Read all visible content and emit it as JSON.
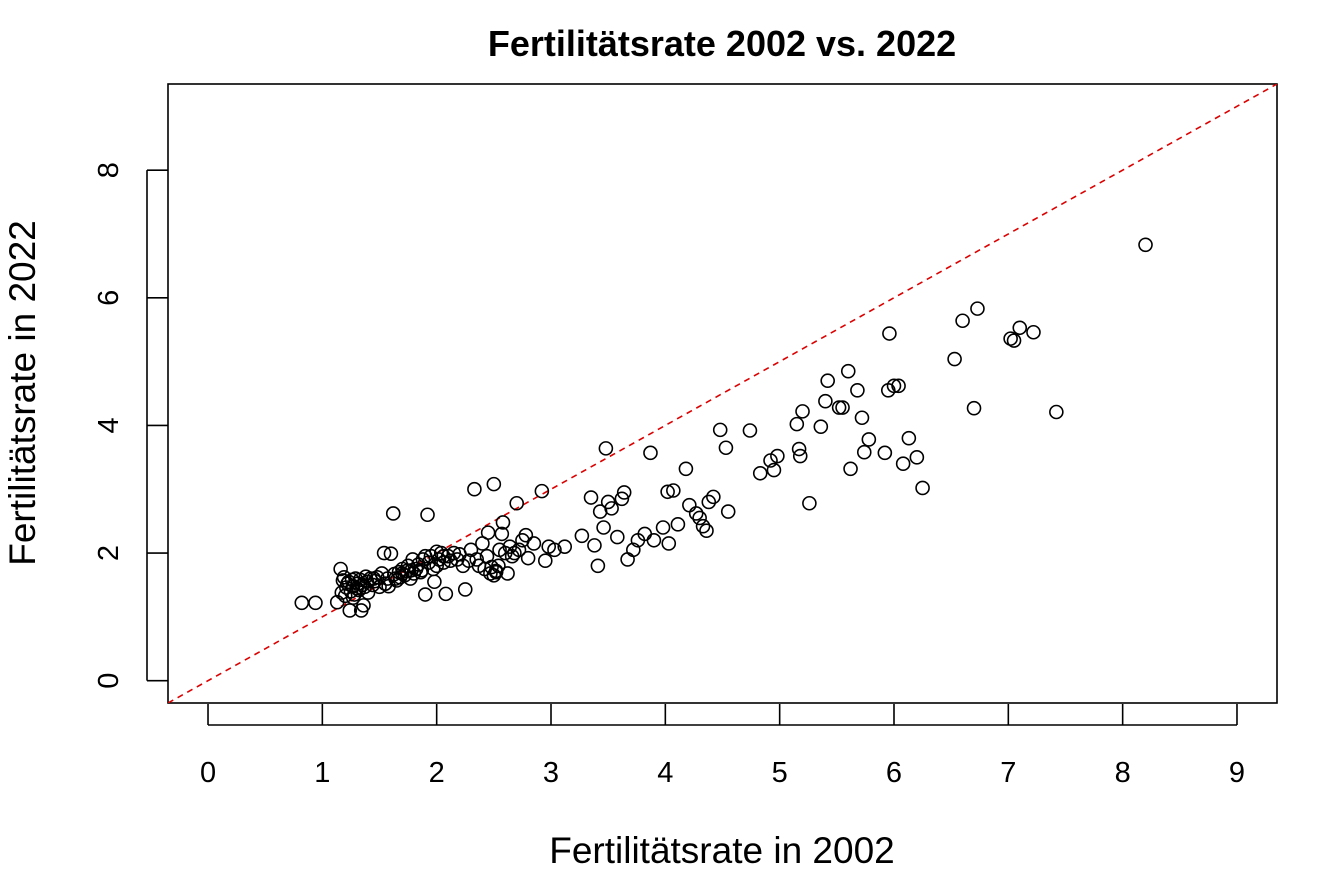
{
  "chart_data": {
    "type": "scatter",
    "title": "Fertilitätsrate 2002 vs. 2022",
    "xlabel": "Fertilitätsrate in 2002",
    "ylabel": "Fertilitätsrate in 2022",
    "xlim": [
      -0.35,
      9.35
    ],
    "ylim": [
      -0.35,
      9.35
    ],
    "x_ticks": [
      0,
      1,
      2,
      3,
      4,
      5,
      6,
      7,
      8,
      9
    ],
    "y_ticks": [
      0,
      2,
      4,
      6,
      8
    ],
    "grid": false,
    "reference_line": {
      "slope": 1,
      "intercept": 0,
      "color": "#dd0000",
      "style": "dashed"
    },
    "point_color": "#000000",
    "points": [
      [
        0.82,
        1.22
      ],
      [
        0.94,
        1.22
      ],
      [
        1.13,
        1.23
      ],
      [
        1.16,
        1.75
      ],
      [
        1.17,
        1.38
      ],
      [
        1.18,
        1.57
      ],
      [
        1.19,
        1.62
      ],
      [
        1.2,
        1.33
      ],
      [
        1.21,
        1.46
      ],
      [
        1.22,
        1.52
      ],
      [
        1.23,
        1.55
      ],
      [
        1.24,
        1.1
      ],
      [
        1.25,
        1.4
      ],
      [
        1.26,
        1.58
      ],
      [
        1.27,
        1.48
      ],
      [
        1.28,
        1.35
      ],
      [
        1.29,
        1.6
      ],
      [
        1.3,
        1.45
      ],
      [
        1.31,
        1.52
      ],
      [
        1.32,
        1.42
      ],
      [
        1.33,
        1.58
      ],
      [
        1.34,
        1.1
      ],
      [
        1.35,
        1.5
      ],
      [
        1.36,
        1.18
      ],
      [
        1.37,
        1.47
      ],
      [
        1.38,
        1.63
      ],
      [
        1.39,
        1.55
      ],
      [
        1.4,
        1.38
      ],
      [
        1.42,
        1.6
      ],
      [
        1.44,
        1.5
      ],
      [
        1.46,
        1.56
      ],
      [
        1.48,
        1.62
      ],
      [
        1.5,
        1.47
      ],
      [
        1.52,
        1.68
      ],
      [
        1.54,
        2.0
      ],
      [
        1.55,
        1.52
      ],
      [
        1.57,
        1.6
      ],
      [
        1.58,
        1.48
      ],
      [
        1.6,
        1.99
      ],
      [
        1.62,
        2.62
      ],
      [
        1.63,
        1.67
      ],
      [
        1.65,
        1.57
      ],
      [
        1.67,
        1.7
      ],
      [
        1.68,
        1.62
      ],
      [
        1.7,
        1.75
      ],
      [
        1.72,
        1.65
      ],
      [
        1.74,
        1.72
      ],
      [
        1.75,
        1.8
      ],
      [
        1.77,
        1.6
      ],
      [
        1.79,
        1.9
      ],
      [
        1.8,
        1.68
      ],
      [
        1.82,
        1.75
      ],
      [
        1.84,
        1.82
      ],
      [
        1.86,
        1.7
      ],
      [
        1.88,
        1.9
      ],
      [
        1.9,
        1.35
      ],
      [
        1.92,
        2.6
      ],
      [
        1.93,
        1.85
      ],
      [
        1.95,
        1.95
      ],
      [
        1.97,
        1.75
      ],
      [
        1.98,
        1.55
      ],
      [
        2.0,
        1.8
      ],
      [
        2.02,
        1.9
      ],
      [
        2.04,
        2.0
      ],
      [
        2.06,
        1.85
      ],
      [
        2.08,
        1.36
      ],
      [
        2.1,
        1.95
      ],
      [
        2.12,
        1.88
      ],
      [
        2.15,
        2.0
      ],
      [
        2.18,
        1.9
      ],
      [
        2.2,
        1.98
      ],
      [
        2.23,
        1.8
      ],
      [
        2.25,
        1.43
      ],
      [
        2.28,
        1.88
      ],
      [
        2.3,
        2.05
      ],
      [
        2.33,
        3.0
      ],
      [
        2.35,
        1.9
      ],
      [
        2.37,
        1.8
      ],
      [
        2.4,
        2.15
      ],
      [
        2.42,
        1.75
      ],
      [
        2.44,
        1.95
      ],
      [
        2.45,
        2.32
      ],
      [
        2.47,
        1.68
      ],
      [
        2.48,
        1.78
      ],
      [
        2.5,
        3.08
      ],
      [
        2.52,
        1.72
      ],
      [
        2.54,
        1.8
      ],
      [
        2.55,
        2.05
      ],
      [
        2.57,
        2.3
      ],
      [
        2.58,
        2.48
      ],
      [
        2.6,
        2.0
      ],
      [
        2.62,
        1.68
      ],
      [
        2.64,
        2.1
      ],
      [
        2.66,
        1.95
      ],
      [
        2.68,
        2.0
      ],
      [
        2.7,
        2.78
      ],
      [
        2.72,
        2.05
      ],
      [
        2.75,
        2.2
      ],
      [
        2.78,
        2.28
      ],
      [
        2.8,
        1.92
      ],
      [
        2.85,
        2.15
      ],
      [
        2.92,
        2.97
      ],
      [
        2.95,
        1.88
      ],
      [
        2.98,
        2.1
      ],
      [
        3.03,
        2.05
      ],
      [
        3.12,
        2.1
      ],
      [
        3.27,
        2.27
      ],
      [
        3.35,
        2.87
      ],
      [
        3.38,
        2.12
      ],
      [
        3.41,
        1.8
      ],
      [
        3.43,
        2.65
      ],
      [
        3.46,
        2.4
      ],
      [
        3.48,
        3.64
      ],
      [
        3.5,
        2.8
      ],
      [
        3.53,
        2.7
      ],
      [
        3.58,
        2.25
      ],
      [
        3.62,
        2.85
      ],
      [
        3.64,
        2.95
      ],
      [
        3.67,
        1.9
      ],
      [
        3.72,
        2.05
      ],
      [
        3.76,
        2.2
      ],
      [
        3.82,
        2.3
      ],
      [
        3.87,
        3.57
      ],
      [
        3.9,
        2.2
      ],
      [
        3.98,
        2.4
      ],
      [
        4.02,
        2.96
      ],
      [
        4.03,
        2.15
      ],
      [
        4.07,
        2.98
      ],
      [
        4.11,
        2.45
      ],
      [
        4.18,
        3.32
      ],
      [
        4.21,
        2.75
      ],
      [
        4.27,
        2.62
      ],
      [
        4.3,
        2.55
      ],
      [
        4.33,
        2.42
      ],
      [
        4.36,
        2.35
      ],
      [
        4.38,
        2.8
      ],
      [
        4.42,
        2.88
      ],
      [
        4.48,
        3.93
      ],
      [
        4.53,
        3.65
      ],
      [
        4.55,
        2.65
      ],
      [
        4.74,
        3.92
      ],
      [
        4.83,
        3.25
      ],
      [
        4.92,
        3.45
      ],
      [
        4.95,
        3.3
      ],
      [
        4.98,
        3.52
      ],
      [
        5.15,
        4.02
      ],
      [
        5.17,
        3.63
      ],
      [
        5.18,
        3.52
      ],
      [
        5.2,
        4.22
      ],
      [
        5.26,
        2.78
      ],
      [
        5.36,
        3.98
      ],
      [
        5.4,
        4.38
      ],
      [
        5.42,
        4.7
      ],
      [
        5.52,
        4.28
      ],
      [
        5.55,
        4.28
      ],
      [
        5.6,
        4.85
      ],
      [
        5.62,
        3.32
      ],
      [
        5.68,
        4.55
      ],
      [
        5.72,
        4.12
      ],
      [
        5.74,
        3.58
      ],
      [
        5.78,
        3.78
      ],
      [
        5.92,
        3.57
      ],
      [
        5.95,
        4.55
      ],
      [
        5.96,
        5.44
      ],
      [
        6.0,
        4.62
      ],
      [
        6.04,
        4.62
      ],
      [
        6.08,
        3.4
      ],
      [
        6.13,
        3.8
      ],
      [
        6.2,
        3.5
      ],
      [
        6.25,
        3.02
      ],
      [
        6.53,
        5.04
      ],
      [
        6.6,
        5.64
      ],
      [
        6.7,
        4.27
      ],
      [
        6.73,
        5.83
      ],
      [
        7.02,
        5.36
      ],
      [
        7.05,
        5.33
      ],
      [
        7.1,
        5.53
      ],
      [
        7.22,
        5.46
      ],
      [
        7.42,
        4.21
      ],
      [
        8.2,
        6.83
      ],
      [
        1.55,
        1.52
      ],
      [
        1.7,
        1.68
      ],
      [
        1.9,
        1.95
      ],
      [
        2.0,
        2.02
      ],
      [
        2.5,
        1.65
      ],
      [
        2.52,
        1.7
      ],
      [
        2.06,
        1.95
      ],
      [
        1.87,
        1.73
      ],
      [
        1.78,
        1.73
      ],
      [
        1.64,
        1.6
      ],
      [
        1.45,
        1.6
      ],
      [
        1.27,
        1.3
      ]
    ]
  }
}
